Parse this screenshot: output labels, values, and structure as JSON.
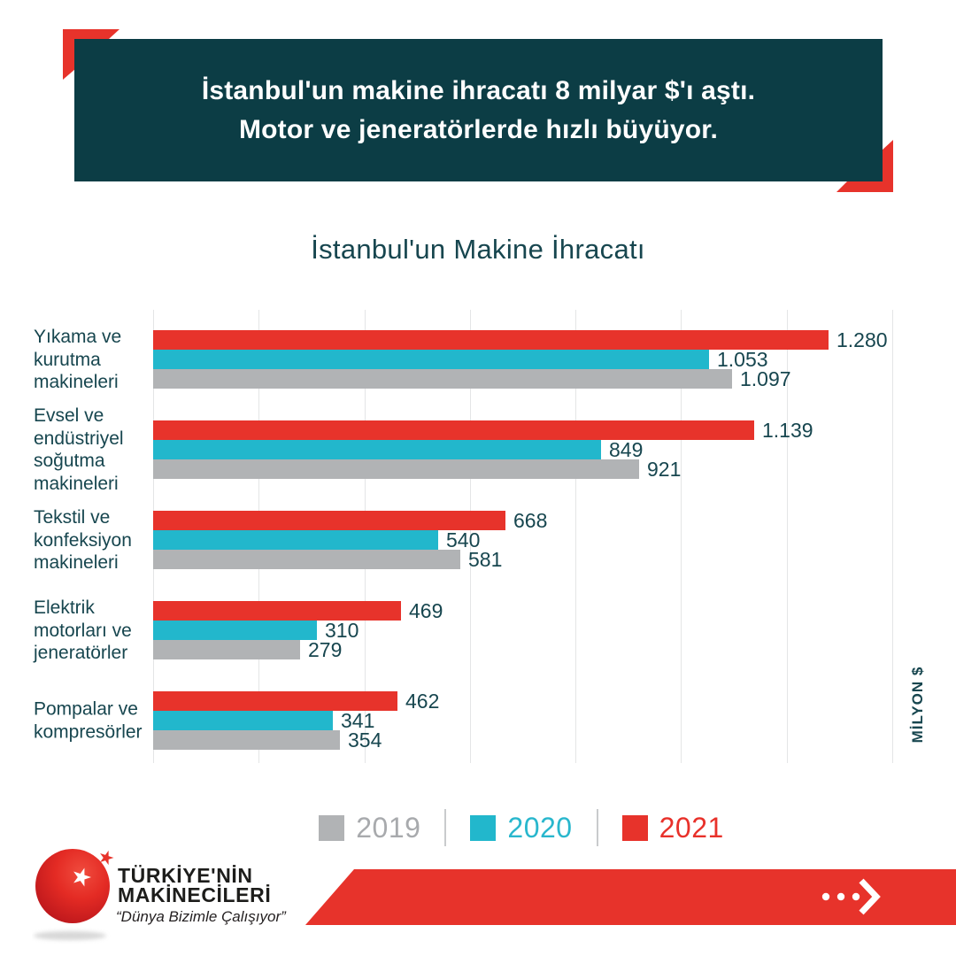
{
  "header": {
    "line1": "İstanbul'un makine ihracatı 8 milyar $'ı aştı.",
    "line2": "Motor ve jeneratörlerde hızlı büyüyor."
  },
  "chart": {
    "title": "İstanbul'un Makine İhracatı",
    "unit_label": "MİLYON $"
  },
  "chart_data": {
    "type": "bar",
    "orientation": "horizontal",
    "title": "İstanbul'un Makine İhracatı",
    "categories": [
      "Yıkama ve\nkurutma\nmakineleri",
      "Evsel ve\nendüstriyel\nsoğutma\nmakineleri",
      "Tekstil ve\nkonfeksiyon\nmakineleri",
      "Elektrik\nmotorları ve\njeneratörler",
      "Pompalar ve\nkompresörler"
    ],
    "series": [
      {
        "name": "2021",
        "color": "#e7332b",
        "values": [
          1280,
          1139,
          668,
          469,
          462
        ],
        "value_labels": [
          "1.280",
          "1.139",
          "668",
          "469",
          "462"
        ]
      },
      {
        "name": "2020",
        "color": "#22b7cc",
        "values": [
          1053,
          849,
          540,
          310,
          341
        ],
        "value_labels": [
          "1.053",
          "849",
          "540",
          "310",
          "341"
        ]
      },
      {
        "name": "2019",
        "color": "#b1b3b5",
        "values": [
          1097,
          921,
          581,
          279,
          354
        ],
        "value_labels": [
          "1.097",
          "921",
          "581",
          "279",
          "354"
        ]
      }
    ],
    "xlim": [
      0,
      1400
    ],
    "gridline_step": 200,
    "grid": true,
    "xlabel": "MİLYON $",
    "legend_position": "bottom",
    "legend_order": [
      "2019",
      "2020",
      "2021"
    ]
  },
  "legend": {
    "items": [
      {
        "label": "2019",
        "color": "#b1b3b5",
        "text_color": "#a8aaad"
      },
      {
        "label": "2020",
        "color": "#22b7cc",
        "text_color": "#29b7cd"
      },
      {
        "label": "2021",
        "color": "#e7332b",
        "text_color": "#e8312a"
      }
    ]
  },
  "footer": {
    "brand_line1": "TÜRKİYE'NİN",
    "brand_line2": "MAKİNECİLERİ",
    "tagline": "“Dünya Bizimle Çalışıyor”"
  },
  "colors": {
    "banner_bg": "#0c3d45",
    "accent_red": "#e7332b",
    "text_teal": "#17464f",
    "gridline": "#e4e5e6"
  }
}
